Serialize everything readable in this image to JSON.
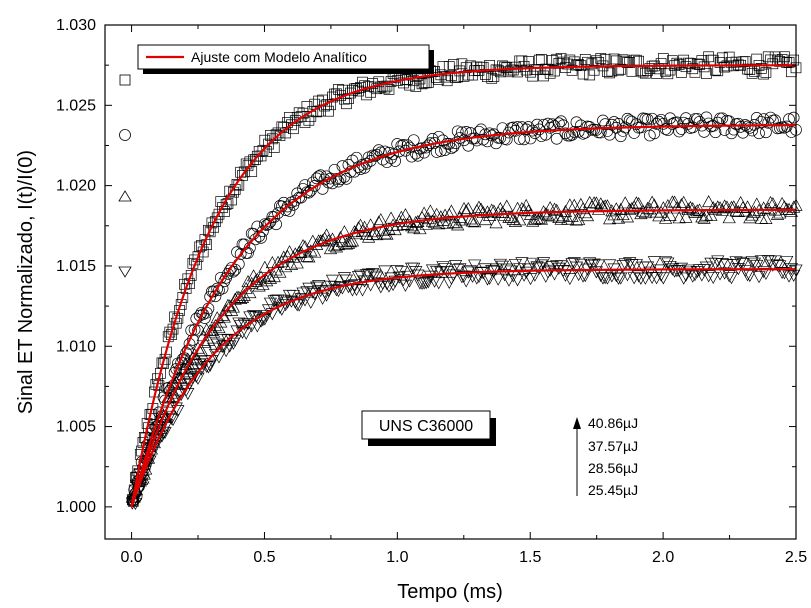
{
  "chart_data": {
    "type": "scatter",
    "title": "",
    "xlabel": "Tempo (ms)",
    "ylabel": "Sinal ET Normalizado, I(t)/I(0)",
    "xlim": [
      -0.1,
      2.5
    ],
    "ylim": [
      0.998,
      1.03
    ],
    "x_ticks": [
      0.0,
      0.5,
      1.0,
      1.5,
      2.0,
      2.5
    ],
    "x_tick_labels": [
      "0.0",
      "0.5",
      "1.0",
      "1.5",
      "2.0",
      "2.5"
    ],
    "y_ticks": [
      1.0,
      1.005,
      1.01,
      1.015,
      1.02,
      1.025,
      1.03
    ],
    "y_tick_labels": [
      "1.000",
      "1.005",
      "1.010",
      "1.015",
      "1.020",
      "1.025",
      "1.030"
    ],
    "grid": false,
    "legend": {
      "placement": "top-left",
      "entries": [
        {
          "label": "Ajuste com Modelo Analítico",
          "style": "line",
          "color": "#e00000"
        }
      ]
    },
    "series": [
      {
        "marker": "square",
        "amplitude": 0.0275,
        "tau": 0.3
      },
      {
        "marker": "circle",
        "amplitude": 0.0238,
        "tau": 0.38
      },
      {
        "marker": "triangle-up",
        "amplitude": 0.0185,
        "tau": 0.33
      },
      {
        "marker": "triangle-down",
        "amplitude": 0.0148,
        "tau": 0.3
      }
    ],
    "fit_color": "#e00000",
    "annotations": {
      "sample_label": "UNS C36000",
      "energies": [
        "40.86µJ",
        "37.57µJ",
        "28.56µJ",
        "25.45µJ"
      ]
    }
  }
}
